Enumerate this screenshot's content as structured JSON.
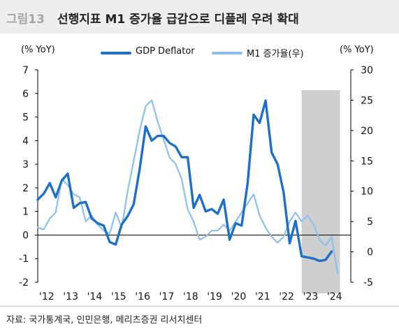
{
  "figure": {
    "number": "그림13",
    "title": "선행지표 M1 증가율 급감으로 디플레 우려 확대",
    "source": "자료: 국가통계국, 인민은행, 메리츠증권 리서치센터"
  },
  "colors": {
    "gdp": "#1f6fc5",
    "m1": "#8dbfee",
    "shade": "#cfcfcf",
    "axis": "#000000"
  },
  "chart_data": {
    "type": "line",
    "left_unit": "(% YoY)",
    "right_unit": "(% YoY)",
    "x_ticks": [
      "'12",
      "'13",
      "'14",
      "'15",
      "'16",
      "'17",
      "'18",
      "'19",
      "'20",
      "'21",
      "'22",
      "'23",
      "'24"
    ],
    "x_range": [
      2012,
      2025.05
    ],
    "left_ylim": [
      -2,
      7
    ],
    "left_yticks": [
      -2,
      -1,
      0,
      1,
      2,
      3,
      4,
      5,
      6,
      7
    ],
    "right_ylim": [
      -5,
      30
    ],
    "right_yticks": [
      -5,
      0,
      5,
      10,
      15,
      20,
      25,
      30
    ],
    "shaded_region": [
      2023.0,
      2024.6
    ],
    "legend_position": "top-center",
    "series": [
      {
        "name": "GDP Deflator",
        "axis": "left",
        "x": [
          2012.0,
          2012.25,
          2012.5,
          2012.75,
          2013.0,
          2013.25,
          2013.5,
          2013.75,
          2014.0,
          2014.25,
          2014.5,
          2014.75,
          2015.0,
          2015.25,
          2015.5,
          2015.75,
          2016.0,
          2016.25,
          2016.5,
          2016.75,
          2017.0,
          2017.25,
          2017.5,
          2017.75,
          2018.0,
          2018.25,
          2018.5,
          2018.75,
          2019.0,
          2019.25,
          2019.5,
          2019.75,
          2020.0,
          2020.25,
          2020.5,
          2020.75,
          2021.0,
          2021.25,
          2021.5,
          2021.75,
          2022.0,
          2022.25,
          2022.5,
          2022.75,
          2023.0,
          2023.25,
          2023.5,
          2023.75,
          2024.0,
          2024.25
        ],
        "values": [
          1.5,
          1.75,
          2.2,
          1.6,
          2.3,
          2.6,
          1.15,
          1.35,
          1.4,
          0.7,
          0.5,
          0.4,
          -0.3,
          -0.4,
          0.45,
          0.8,
          1.3,
          2.8,
          4.6,
          4.0,
          4.2,
          4.2,
          3.9,
          3.75,
          3.3,
          3.3,
          1.15,
          1.7,
          1.0,
          1.1,
          0.9,
          1.5,
          -0.2,
          0.5,
          0.4,
          2.2,
          5.1,
          4.75,
          5.7,
          3.5,
          3.0,
          1.8,
          -0.35,
          0.6,
          -0.9,
          -0.95,
          -1.0,
          -1.1,
          -1.05,
          -0.7
        ]
      },
      {
        "name": "M1 증가율(우)",
        "axis": "right",
        "x": [
          2012.0,
          2012.25,
          2012.5,
          2012.75,
          2013.0,
          2013.25,
          2013.5,
          2013.75,
          2014.0,
          2014.25,
          2014.5,
          2014.75,
          2015.0,
          2015.25,
          2015.5,
          2015.75,
          2016.0,
          2016.25,
          2016.5,
          2016.75,
          2017.0,
          2017.25,
          2017.5,
          2017.75,
          2018.0,
          2018.25,
          2018.5,
          2018.75,
          2019.0,
          2019.25,
          2019.5,
          2019.75,
          2020.0,
          2020.25,
          2020.5,
          2020.75,
          2021.0,
          2021.25,
          2021.5,
          2021.75,
          2022.0,
          2022.25,
          2022.5,
          2022.75,
          2023.0,
          2023.25,
          2023.5,
          2023.75,
          2024.0,
          2024.25,
          2024.5
        ],
        "values": [
          4,
          3.7,
          5.5,
          6.5,
          12,
          11,
          9.5,
          9,
          5,
          6,
          4.5,
          3.5,
          3,
          6.5,
          4,
          10,
          15,
          20,
          24,
          25,
          21.5,
          18.5,
          15.5,
          14.5,
          12,
          7,
          5,
          2,
          2.5,
          3.5,
          3.5,
          4.5,
          3.5,
          5,
          6.5,
          8,
          9.5,
          6,
          4,
          2.5,
          1.5,
          2.5,
          5,
          6.5,
          5,
          6,
          4.5,
          2,
          1,
          2.5,
          -3.5
        ]
      }
    ]
  }
}
